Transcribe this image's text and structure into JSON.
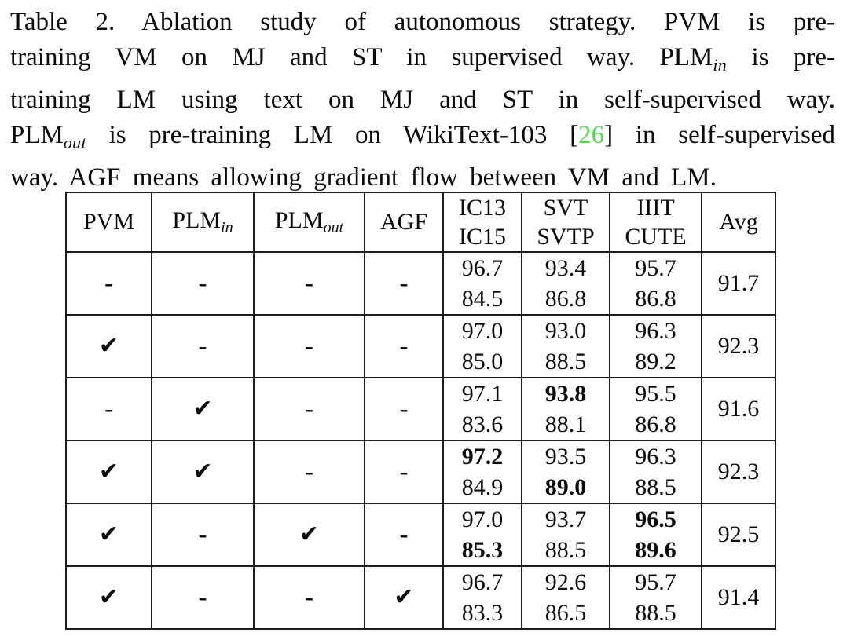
{
  "caption": {
    "cite_color": "#4be04b",
    "lines": [
      {
        "justify": true,
        "segments": [
          {
            "t": "Table 2. Ablation study of autonomous strategy.  PVM is pre-"
          }
        ]
      },
      {
        "justify": true,
        "segments": [
          {
            "t": "training VM on MJ and ST in supervised way.  PLM"
          },
          {
            "t": "in",
            "s": "sub"
          },
          {
            "t": " is pre-"
          }
        ]
      },
      {
        "justify": true,
        "segments": [
          {
            "t": "training LM using text on MJ and ST in self-supervised way."
          }
        ]
      },
      {
        "justify": true,
        "segments": [
          {
            "t": "PLM"
          },
          {
            "t": "out",
            "s": "sub"
          },
          {
            "t": " is pre-training LM on WikiText-103 ["
          },
          {
            "t": "26",
            "s": "cite"
          },
          {
            "t": "] in self-supervised"
          }
        ]
      },
      {
        "justify": false,
        "segments": [
          {
            "t": "way. AGF means allowing gradient flow between VM and LM."
          }
        ]
      }
    ]
  },
  "table": {
    "check_glyph": "✔",
    "dash_glyph": "-",
    "header": {
      "config_cols": [
        {
          "key": "pvm",
          "label": "PVM",
          "sub": null
        },
        {
          "key": "plm-in",
          "label": "PLM",
          "sub": "in"
        },
        {
          "key": "plm-out",
          "label": "PLM",
          "sub": "out"
        },
        {
          "key": "agf",
          "label": "AGF",
          "sub": null
        }
      ],
      "score_cols": [
        {
          "key": "ic13-ic15",
          "top": "IC13",
          "bottom": "IC15"
        },
        {
          "key": "svt-svtp",
          "top": "SVT",
          "bottom": "SVTP"
        },
        {
          "key": "iiit-cute",
          "top": "IIIT",
          "bottom": "CUTE"
        }
      ],
      "avg_label": "Avg"
    },
    "rows": [
      {
        "marks": [
          "dash",
          "dash",
          "dash",
          "dash"
        ],
        "scores": [
          {
            "top": "96.7",
            "bottom": "84.5",
            "topBold": false,
            "bottomBold": false
          },
          {
            "top": "93.4",
            "bottom": "86.8",
            "topBold": false,
            "bottomBold": false
          },
          {
            "top": "95.7",
            "bottom": "86.8",
            "topBold": false,
            "bottomBold": false
          }
        ],
        "avg": {
          "v": "91.7",
          "bold": false
        }
      },
      {
        "marks": [
          "check",
          "dash",
          "dash",
          "dash"
        ],
        "scores": [
          {
            "top": "97.0",
            "bottom": "85.0",
            "topBold": false,
            "bottomBold": false
          },
          {
            "top": "93.0",
            "bottom": "88.5",
            "topBold": false,
            "bottomBold": false
          },
          {
            "top": "96.3",
            "bottom": "89.2",
            "topBold": false,
            "bottomBold": false
          }
        ],
        "avg": {
          "v": "92.3",
          "bold": false
        }
      },
      {
        "marks": [
          "dash",
          "check",
          "dash",
          "dash"
        ],
        "scores": [
          {
            "top": "97.1",
            "bottom": "83.6",
            "topBold": false,
            "bottomBold": false
          },
          {
            "top": "93.8",
            "bottom": "88.1",
            "topBold": true,
            "bottomBold": false
          },
          {
            "top": "95.5",
            "bottom": "86.8",
            "topBold": false,
            "bottomBold": false
          }
        ],
        "avg": {
          "v": "91.6",
          "bold": false
        }
      },
      {
        "marks": [
          "check",
          "check",
          "dash",
          "dash"
        ],
        "scores": [
          {
            "top": "97.2",
            "bottom": "84.9",
            "topBold": true,
            "bottomBold": false
          },
          {
            "top": "93.5",
            "bottom": "89.0",
            "topBold": false,
            "bottomBold": true
          },
          {
            "top": "96.3",
            "bottom": "88.5",
            "topBold": false,
            "bottomBold": false
          }
        ],
        "avg": {
          "v": "92.3",
          "bold": false
        }
      },
      {
        "marks": [
          "check",
          "dash",
          "check",
          "dash"
        ],
        "scores": [
          {
            "top": "97.0",
            "bottom": "85.3",
            "topBold": false,
            "bottomBold": true
          },
          {
            "top": "93.7",
            "bottom": "88.5",
            "topBold": false,
            "bottomBold": false
          },
          {
            "top": "96.5",
            "bottom": "89.6",
            "topBold": true,
            "bottomBold": true
          }
        ],
        "avg": {
          "v": "92.5",
          "bold": true
        }
      },
      {
        "marks": [
          "check",
          "dash",
          "dash",
          "check"
        ],
        "scores": [
          {
            "top": "96.7",
            "bottom": "83.3",
            "topBold": false,
            "bottomBold": false
          },
          {
            "top": "92.6",
            "bottom": "86.5",
            "topBold": false,
            "bottomBold": false
          },
          {
            "top": "95.7",
            "bottom": "88.5",
            "topBold": false,
            "bottomBold": false
          }
        ],
        "avg": {
          "v": "91.4",
          "bold": false
        }
      }
    ]
  }
}
